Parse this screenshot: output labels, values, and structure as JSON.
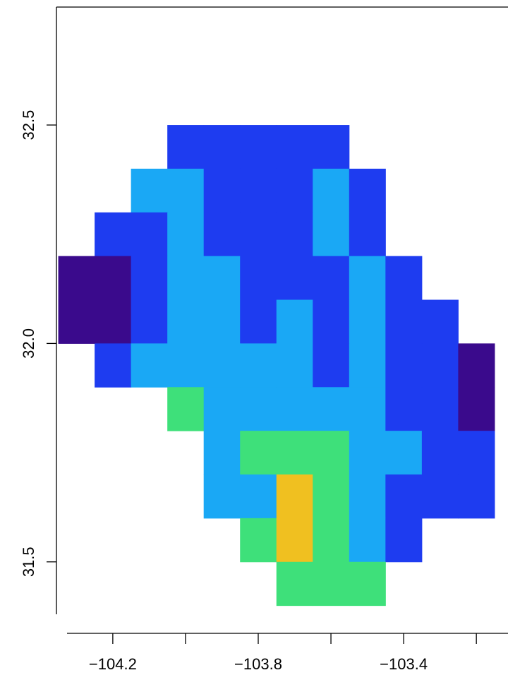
{
  "chart_data": {
    "type": "heatmap",
    "xlim": [
      -104.355,
      -103.113
    ],
    "ylim": [
      31.38,
      32.77
    ],
    "xticks": [
      {
        "value": -104.2,
        "label": "−104.2"
      },
      {
        "value": -103.8,
        "label": "−103.8"
      },
      {
        "value": -103.4,
        "label": "−103.4"
      }
    ],
    "xticks_minor": [
      -104,
      -103.6,
      -103.2
    ],
    "yticks": [
      {
        "value": 31.5,
        "label": "31.5"
      },
      {
        "value": 32,
        "label": "32.0"
      },
      {
        "value": 32.5,
        "label": "32.5"
      }
    ],
    "lon_bins": [
      -104.35,
      -104.25,
      -104.15,
      -104.05,
      -103.95,
      -103.85,
      -103.75,
      -103.65,
      -103.55,
      -103.45,
      -103.35,
      -103.25,
      -103.15
    ],
    "lat_bins": [
      32.5,
      32.4,
      32.3,
      32.2,
      32.1,
      32.0,
      31.9,
      31.8,
      31.7,
      31.6,
      31.5,
      31.4
    ],
    "colors": [
      "#3a0a8c",
      "#1e3cf0",
      "#1aa8f5",
      "#3ee07a",
      "#f0c020"
    ],
    "values": [
      [
        null,
        null,
        null,
        2,
        2,
        2,
        2,
        2,
        null,
        null,
        null,
        null
      ],
      [
        null,
        null,
        3,
        3,
        2,
        2,
        2,
        3,
        2,
        null,
        null,
        null
      ],
      [
        null,
        2,
        2,
        3,
        2,
        2,
        2,
        3,
        2,
        null,
        null,
        null
      ],
      [
        1,
        1,
        2,
        3,
        3,
        2,
        2,
        2,
        3,
        2,
        null,
        null
      ],
      [
        1,
        1,
        2,
        3,
        3,
        2,
        3,
        2,
        3,
        2,
        2,
        null
      ],
      [
        null,
        2,
        3,
        3,
        3,
        3,
        3,
        2,
        3,
        2,
        2,
        1
      ],
      [
        null,
        null,
        null,
        4,
        3,
        3,
        3,
        3,
        3,
        2,
        2,
        1
      ],
      [
        null,
        null,
        null,
        null,
        3,
        4,
        4,
        4,
        3,
        3,
        2,
        2
      ],
      [
        null,
        null,
        null,
        null,
        3,
        3,
        5,
        4,
        3,
        2,
        2,
        2
      ],
      [
        null,
        null,
        null,
        null,
        null,
        4,
        5,
        4,
        3,
        2,
        null,
        null
      ],
      [
        null,
        null,
        null,
        null,
        null,
        null,
        4,
        4,
        4,
        null,
        null,
        null
      ]
    ]
  }
}
